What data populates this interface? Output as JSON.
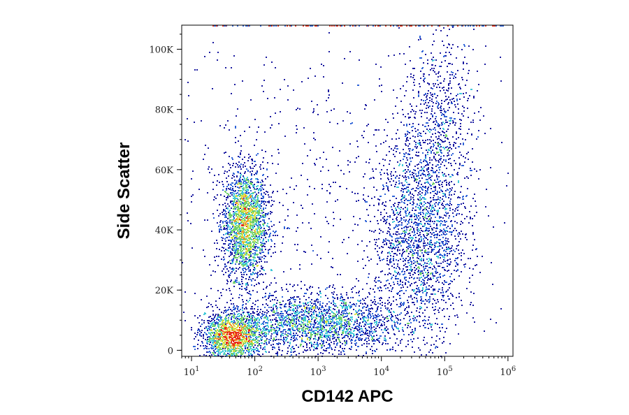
{
  "chart_data": {
    "type": "scatter",
    "subtype": "flow-cytometry density dot plot",
    "title": "",
    "xlabel": "CD142 APC",
    "ylabel": "Side Scatter",
    "x_scale": "log",
    "xlim": [
      7,
      1200000
    ],
    "ylim": [
      -2000,
      108000
    ],
    "x_ticks": [
      {
        "value": 10,
        "base": "10",
        "exp": "1"
      },
      {
        "value": 100,
        "base": "10",
        "exp": "2"
      },
      {
        "value": 1000,
        "base": "10",
        "exp": "3"
      },
      {
        "value": 10000,
        "base": "10",
        "exp": "4"
      },
      {
        "value": 100000,
        "base": "10",
        "exp": "5"
      },
      {
        "value": 1000000,
        "base": "10",
        "exp": "6"
      }
    ],
    "y_ticks": [
      {
        "value": 0,
        "label": "0"
      },
      {
        "value": 20000,
        "label": "20K"
      },
      {
        "value": 40000,
        "label": "40K"
      },
      {
        "value": 60000,
        "label": "60K"
      },
      {
        "value": 80000,
        "label": "80K"
      },
      {
        "value": 100000,
        "label": "100K"
      }
    ],
    "grid": false,
    "legend": "none",
    "density_colors": [
      "#1a1aa0",
      "#2e63d8",
      "#3fc9d9",
      "#6fd06a",
      "#d8e040",
      "#f09a2a",
      "#e8301a"
    ],
    "populations": [
      {
        "x_center": 70,
        "y_center": 42000,
        "x_spread_decades": 0.17,
        "y_spread": 9000,
        "events": 2600,
        "peak_density": "high"
      },
      {
        "x_center": 45,
        "y_center": 4500,
        "x_spread_decades": 0.22,
        "y_spread": 3500,
        "events": 2200,
        "peak_density": "high"
      },
      {
        "x_center": 900,
        "y_center": 9000,
        "x_spread_decades": 0.7,
        "y_spread": 5000,
        "events": 2400,
        "peak_density": "medium"
      },
      {
        "x_center": 40000,
        "y_center": 38000,
        "x_spread_decades": 0.35,
        "y_spread": 16000,
        "events": 2000,
        "peak_density": "medium"
      },
      {
        "x_center": 80000,
        "y_center": 75000,
        "x_spread_decades": 0.3,
        "y_spread": 15000,
        "events": 700,
        "peak_density": "low"
      },
      {
        "x_center": 1000,
        "y_center": 50000,
        "x_spread_decades": 1.5,
        "y_spread": 28000,
        "events": 700,
        "peak_density": "low"
      }
    ]
  }
}
